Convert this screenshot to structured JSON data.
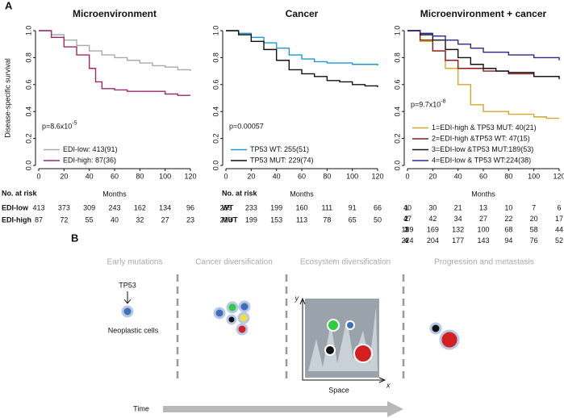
{
  "panel_labels": [
    "A",
    "B"
  ],
  "chart_data": [
    {
      "type": "step",
      "title": "Microenvironment",
      "y_label": "Disease-specific survival",
      "x_label": "Months",
      "xlim": [
        0,
        120
      ],
      "xticks": [
        0,
        20,
        40,
        60,
        80,
        100,
        120
      ],
      "ylim": [
        0,
        1
      ],
      "yticks": [
        {
          "value": 0,
          "label": "0.0"
        },
        0.2,
        0.4,
        0.6,
        0.8,
        {
          "value": 1,
          "label": "1.0"
        }
      ],
      "p_value": "p=8.6x10",
      "p_exponent": "-5",
      "legend": "lower left",
      "series": [
        {
          "name": "EDI-low: 413(91)",
          "color": "#aaaaaa",
          "x": [
            0,
            10,
            20,
            30,
            40,
            50,
            60,
            70,
            80,
            90,
            100,
            110,
            120
          ],
          "values": [
            1,
            0.97,
            0.93,
            0.89,
            0.85,
            0.82,
            0.8,
            0.78,
            0.76,
            0.74,
            0.73,
            0.71,
            0.7
          ]
        },
        {
          "name": "EDI-high: 87(36)",
          "color": "#9c2a6c",
          "x": [
            0,
            10,
            20,
            30,
            40,
            45,
            50,
            60,
            70,
            90,
            100,
            110,
            120
          ],
          "values": [
            1,
            0.95,
            0.88,
            0.82,
            0.72,
            0.62,
            0.57,
            0.56,
            0.55,
            0.55,
            0.53,
            0.52,
            0.52
          ]
        }
      ],
      "risk_table": {
        "title": "No. at risk",
        "rows": [
          {
            "label": "EDI-low",
            "values": [
              413,
              373,
              309,
              243,
              162,
              134,
              96
            ]
          },
          {
            "label": "EDI-high",
            "values": [
              87,
              72,
              55,
              40,
              32,
              27,
              23
            ]
          }
        ]
      }
    },
    {
      "type": "step",
      "title": "Cancer",
      "x_label": "Months",
      "xlim": [
        0,
        120
      ],
      "xticks": [
        0,
        20,
        40,
        60,
        80,
        100,
        120
      ],
      "ylim": [
        0,
        1
      ],
      "yticks": [
        {
          "value": 0,
          "label": "0.0"
        },
        0.2,
        0.4,
        0.6,
        0.8,
        {
          "value": 1,
          "label": "1.0"
        }
      ],
      "p_value": "p=0.00057",
      "legend": "lower left",
      "series": [
        {
          "name": "TP53  WT: 255(51)",
          "color": "#1a9ad6",
          "x": [
            0,
            10,
            20,
            30,
            40,
            50,
            60,
            70,
            80,
            100,
            120
          ],
          "values": [
            1,
            0.98,
            0.95,
            0.91,
            0.87,
            0.82,
            0.79,
            0.77,
            0.76,
            0.75,
            0.74
          ]
        },
        {
          "name": "TP53  MUT: 229(74)",
          "color": "#111111",
          "x": [
            0,
            10,
            20,
            30,
            40,
            50,
            60,
            70,
            80,
            90,
            100,
            110,
            120
          ],
          "values": [
            1,
            0.97,
            0.92,
            0.86,
            0.78,
            0.71,
            0.68,
            0.66,
            0.63,
            0.62,
            0.6,
            0.59,
            0.58
          ]
        }
      ],
      "risk_table": {
        "title": "No. at risk",
        "rows": [
          {
            "label": "WT",
            "values": [
              255,
              233,
              199,
              160,
              111,
              91,
              66
            ]
          },
          {
            "label": "MUT",
            "values": [
              229,
              199,
              153,
              113,
              78,
              65,
              50
            ]
          }
        ]
      }
    },
    {
      "type": "step",
      "title": "Microenvironment + cancer",
      "x_label": "Months",
      "xlim": [
        0,
        120
      ],
      "xticks": [
        0,
        20,
        40,
        60,
        80,
        100,
        120
      ],
      "ylim": [
        0,
        1
      ],
      "yticks": [
        {
          "value": 0,
          "label": "0.0"
        },
        0.2,
        0.4,
        0.6,
        0.8,
        {
          "value": 1,
          "label": "1.0"
        }
      ],
      "p_value": "p=9.7x10",
      "p_exponent": "-8",
      "legend": "lower left",
      "series": [
        {
          "name": "1=EDI-high & TP53  MUT: 40(21)",
          "color": "#d4a82a",
          "x": [
            0,
            10,
            20,
            30,
            40,
            50,
            60,
            80,
            100,
            110,
            120
          ],
          "values": [
            1,
            0.92,
            0.85,
            0.72,
            0.6,
            0.45,
            0.4,
            0.38,
            0.36,
            0.35,
            0.35
          ]
        },
        {
          "name": "2=EDI-high &TP53 WT: 47(15)",
          "color": "#8b1a1a",
          "x": [
            0,
            10,
            20,
            30,
            40,
            60,
            80,
            100,
            120
          ],
          "values": [
            1,
            0.93,
            0.85,
            0.78,
            0.72,
            0.7,
            0.68,
            0.66,
            0.66
          ]
        },
        {
          "name": "3=EDI-low &TP53  MUT:189(53)",
          "color": "#111111",
          "x": [
            0,
            10,
            20,
            30,
            40,
            50,
            60,
            70,
            80,
            100,
            120
          ],
          "values": [
            1,
            0.97,
            0.93,
            0.86,
            0.8,
            0.75,
            0.72,
            0.7,
            0.69,
            0.66,
            0.64
          ]
        },
        {
          "name": "4=EDI-low & TP53  WT:224(38)",
          "color": "#2a2a8c",
          "x": [
            0,
            10,
            20,
            30,
            40,
            50,
            60,
            80,
            100,
            120
          ],
          "values": [
            1,
            0.98,
            0.96,
            0.93,
            0.9,
            0.87,
            0.84,
            0.82,
            0.8,
            0.78
          ]
        }
      ],
      "risk_table": {
        "rows": [
          {
            "label": "1",
            "values": [
              40,
              30,
              21,
              13,
              10,
              7,
              6
            ]
          },
          {
            "label": "2",
            "values": [
              47,
              42,
              34,
              27,
              22,
              20,
              17
            ]
          },
          {
            "label": "3",
            "values": [
              189,
              169,
              132,
              100,
              68,
              58,
              44
            ]
          },
          {
            "label": "4",
            "values": [
              224,
              204,
              177,
              143,
              94,
              76,
              52
            ]
          }
        ]
      }
    }
  ],
  "diagram": {
    "stages": [
      "Early mutations",
      "Cancer diversification",
      "Ecosystem diversification",
      "Progression and metastasis"
    ],
    "mutation": "TP53",
    "cells_label": "Neoplastic cells",
    "y_axis": "y",
    "x_axis": "x",
    "space_label": "Space",
    "time_label": "Time"
  }
}
